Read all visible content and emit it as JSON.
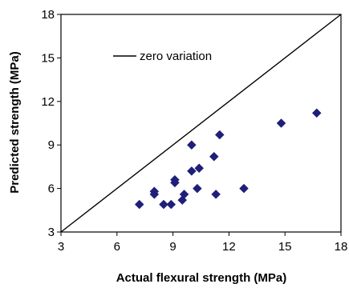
{
  "chart_data": {
    "type": "scatter",
    "xlabel": "Actual flexural strength (MPa)",
    "ylabel": "Predicted strength (MPa)",
    "xlim": [
      3,
      18
    ],
    "ylim": [
      3,
      18
    ],
    "xticks": [
      3,
      6,
      9,
      12,
      15,
      18
    ],
    "yticks": [
      3,
      6,
      9,
      12,
      15,
      18
    ],
    "x_tick_labels": [
      "3",
      "6",
      "9",
      "12",
      "15",
      "18"
    ],
    "y_tick_labels": [
      "3",
      "6",
      "9",
      "12",
      "15",
      "18"
    ],
    "grid": false,
    "legend_placement": "top-left",
    "reference_line": {
      "name": "zero variation",
      "x": [
        3,
        18
      ],
      "y": [
        3,
        18
      ],
      "color": "#000000"
    },
    "series": [
      {
        "marker": "diamond",
        "color": "#1f1f7a",
        "points": [
          [
            7.2,
            4.9
          ],
          [
            8.0,
            5.8
          ],
          [
            8.0,
            5.6
          ],
          [
            8.5,
            4.9
          ],
          [
            8.9,
            4.9
          ],
          [
            9.1,
            6.6
          ],
          [
            9.1,
            6.4
          ],
          [
            9.5,
            5.2
          ],
          [
            9.6,
            5.6
          ],
          [
            10.0,
            9.0
          ],
          [
            10.0,
            7.2
          ],
          [
            10.3,
            6.0
          ],
          [
            10.4,
            7.4
          ],
          [
            11.2,
            8.2
          ],
          [
            11.3,
            5.6
          ],
          [
            11.5,
            9.7
          ],
          [
            12.8,
            6.0
          ],
          [
            14.8,
            10.5
          ],
          [
            16.7,
            11.2
          ]
        ]
      }
    ]
  }
}
